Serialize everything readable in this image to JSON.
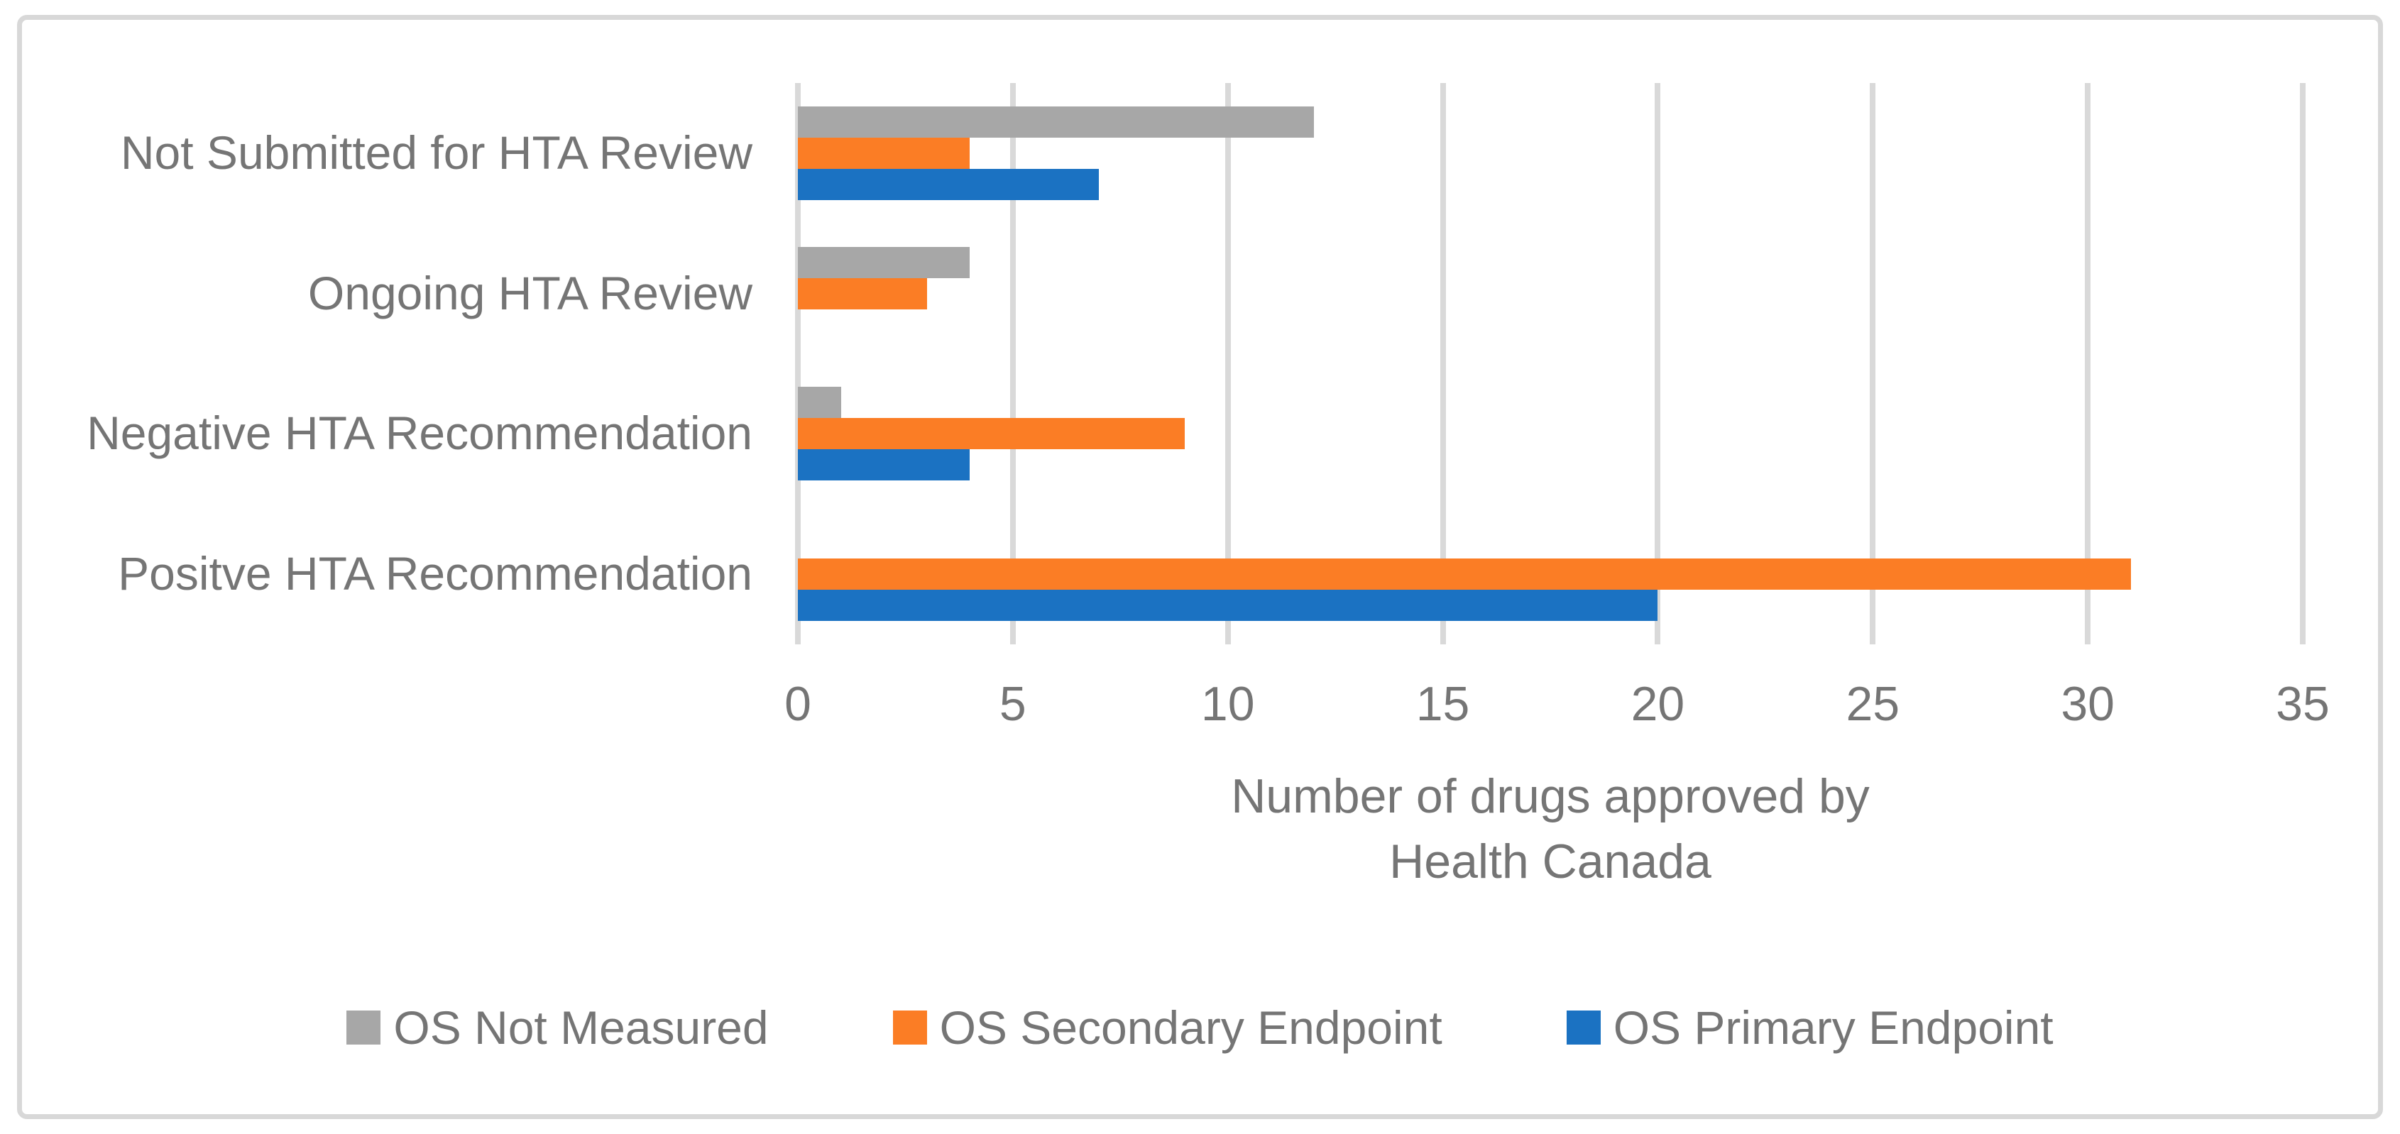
{
  "figure": {
    "background": "#FFFFFF",
    "border_color": "#D8D8D8"
  },
  "chart_data": {
    "type": "bar",
    "orientation": "horizontal",
    "title": "",
    "categories": [
      "Not Submitted for HTA Review",
      "Ongoing HTA Review",
      "Negative HTA Recommendation",
      "Positve HTA Recommendation"
    ],
    "series": [
      {
        "name": "OS Not Measured",
        "color": "#A7A7A7",
        "values": [
          12,
          4,
          1,
          0
        ]
      },
      {
        "name": "OS Secondary Endpoint",
        "color": "#FB7D25",
        "values": [
          4,
          3,
          9,
          31
        ]
      },
      {
        "name": "OS Primary Endpoint",
        "color": "#1B72C2",
        "values": [
          7,
          0,
          4,
          20
        ]
      }
    ],
    "xlabel": "Number of drugs approved by Health Canada",
    "xlabel_lines": [
      "Number of drugs approved by",
      "Health Canada"
    ],
    "xlim": [
      0,
      35
    ],
    "x_ticks": [
      0,
      5,
      10,
      15,
      20,
      25,
      30,
      35
    ],
    "grid": "vertical",
    "gridline_color": "#D9D9D9",
    "text_color": "#757575",
    "legend_position": "bottom"
  }
}
